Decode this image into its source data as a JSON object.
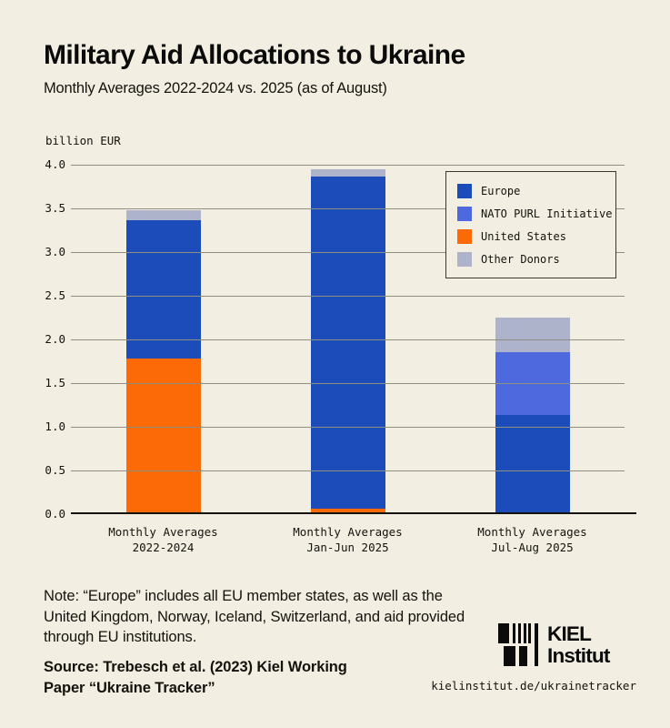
{
  "page": {
    "background": "#f2eee1"
  },
  "header": {
    "title": "Military Aid Allocations to Ukraine",
    "subtitle": "Monthly Averages 2022-2024 vs. 2025 (as of August)"
  },
  "chart_data": {
    "type": "bar",
    "stacked": true,
    "unit_label": "billion EUR",
    "ylim": [
      0,
      4.0
    ],
    "ytick_step": 0.5,
    "grid": true,
    "grid_color": "#908d83",
    "legend_position": "top-right",
    "legend": [
      {
        "key": "europe",
        "label": "Europe",
        "color": "#1b4cba"
      },
      {
        "key": "nato_purl",
        "label": "NATO PURL Initiative",
        "color": "#4e68de"
      },
      {
        "key": "united_states",
        "label": "United States",
        "color": "#fb6a06"
      },
      {
        "key": "other_donors",
        "label": "Other Donors",
        "color": "#aeb3cc"
      }
    ],
    "categories": [
      {
        "label_line1": "Monthly Averages",
        "label_line2": "2022-2024",
        "segments": [
          {
            "key": "united_states",
            "value": 1.78
          },
          {
            "key": "europe",
            "value": 1.59
          },
          {
            "key": "other_donors",
            "value": 0.11
          }
        ]
      },
      {
        "label_line1": "Monthly Averages",
        "label_line2": "Jan-Jun 2025",
        "segments": [
          {
            "key": "united_states",
            "value": 0.06
          },
          {
            "key": "europe",
            "value": 3.81
          },
          {
            "key": "other_donors",
            "value": 0.08
          }
        ]
      },
      {
        "label_line1": "Monthly Averages",
        "label_line2": "Jul-Aug 2025",
        "segments": [
          {
            "key": "europe",
            "value": 1.14
          },
          {
            "key": "nato_purl",
            "value": 0.71
          },
          {
            "key": "other_donors",
            "value": 0.4
          }
        ]
      }
    ]
  },
  "footer": {
    "note": "Note: “Europe” includes all EU member states, as well as the United Kingdom, Norway, Iceland, Switzerland, and aid provided through EU institutions.",
    "source_line1": "Source: Trebesch et al. (2023) Kiel Working",
    "source_line2": "Paper “Ukraine Tracker”",
    "logo_line1": "KIEL",
    "logo_line2": "Institut",
    "url": "kielinstitut.de/ukrainetracker"
  }
}
